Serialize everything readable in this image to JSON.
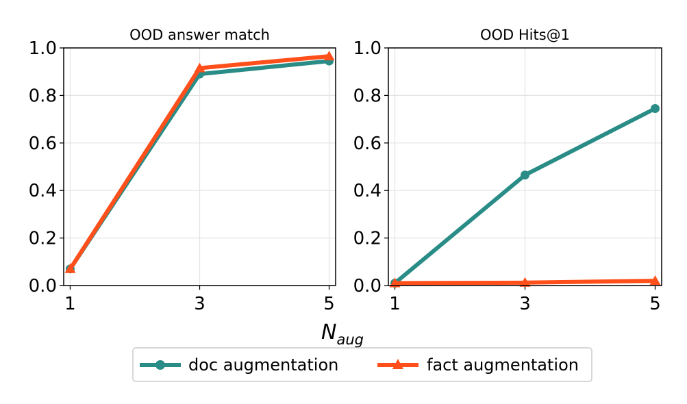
{
  "chart_data": [
    {
      "type": "line",
      "title": "OOD answer match",
      "xlabel": "N",
      "xlabel_sub": "aug",
      "ylabel": "",
      "x": [
        1,
        3,
        5
      ],
      "xlim": [
        0.9,
        5.1
      ],
      "ylim": [
        0.0,
        1.0
      ],
      "xticks": [
        1,
        3,
        5
      ],
      "yticks": [
        0.0,
        0.2,
        0.4,
        0.6,
        0.8,
        1.0
      ],
      "grid": true,
      "series": [
        {
          "name": "doc augmentation",
          "values": [
            0.07,
            0.89,
            0.945
          ],
          "color": "#2a8c86",
          "marker": "circle"
        },
        {
          "name": "fact augmentation",
          "values": [
            0.07,
            0.915,
            0.965
          ],
          "color": "#ff4f1a",
          "marker": "triangle"
        }
      ]
    },
    {
      "type": "line",
      "title": "OOD Hits@1",
      "xlabel": "N",
      "xlabel_sub": "aug",
      "ylabel": "",
      "x": [
        1,
        3,
        5
      ],
      "xlim": [
        0.9,
        5.1
      ],
      "ylim": [
        0.0,
        1.0
      ],
      "xticks": [
        1,
        3,
        5
      ],
      "yticks": [
        0.0,
        0.2,
        0.4,
        0.6,
        0.8,
        1.0
      ],
      "grid": true,
      "series": [
        {
          "name": "doc augmentation",
          "values": [
            0.01,
            0.465,
            0.745
          ],
          "color": "#2a8c86",
          "marker": "circle"
        },
        {
          "name": "fact augmentation",
          "values": [
            0.01,
            0.012,
            0.02
          ],
          "color": "#ff4f1a",
          "marker": "triangle"
        }
      ]
    }
  ],
  "xlabel": {
    "main": "N",
    "sub": "aug"
  },
  "legend": {
    "placement": "bottom-center",
    "entries": [
      {
        "label": "doc augmentation",
        "color": "#2a8c86",
        "marker": "circle"
      },
      {
        "label": "fact augmentation",
        "color": "#ff4f1a",
        "marker": "triangle"
      }
    ]
  }
}
